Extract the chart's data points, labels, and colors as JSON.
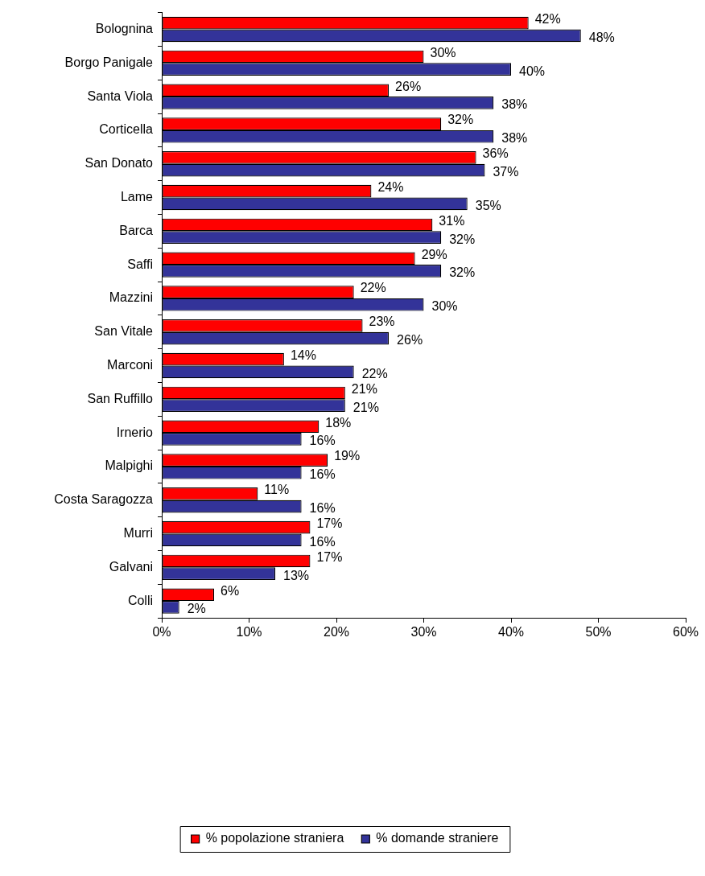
{
  "chart_data": {
    "type": "bar",
    "orientation": "horizontal",
    "grid": false,
    "legend": "bottom",
    "data_labels": true,
    "categories": [
      "Bolognina",
      "Borgo Panigale",
      "Santa Viola",
      "Corticella",
      "San Donato",
      "Lame",
      "Barca",
      "Saffi",
      "Mazzini",
      "San Vitale",
      "Marconi",
      "San Ruffillo",
      "Irnerio",
      "Malpighi",
      "Costa Saragozza",
      "Murri",
      "Galvani",
      "Colli"
    ],
    "xlim": [
      0,
      60
    ],
    "xticks": [
      {
        "value": 0,
        "label": "0%"
      },
      {
        "value": 10,
        "label": "10%"
      },
      {
        "value": 20,
        "label": "20%"
      },
      {
        "value": 30,
        "label": "30%"
      },
      {
        "value": 40,
        "label": "40%"
      },
      {
        "value": 50,
        "label": "50%"
      },
      {
        "value": 60,
        "label": "60%"
      }
    ],
    "series": [
      {
        "name": "% popolazione straniera",
        "color": "#ff0000",
        "values": [
          42,
          30,
          26,
          32,
          36,
          24,
          31,
          29,
          22,
          23,
          14,
          21,
          18,
          19,
          11,
          17,
          17,
          6
        ],
        "value_labels": [
          "42%",
          "30%",
          "26%",
          "32%",
          "36%",
          "24%",
          "31%",
          "29%",
          "22%",
          "23%",
          "14%",
          "21%",
          "18%",
          "19%",
          "11%",
          "17%",
          "17%",
          "6%"
        ]
      },
      {
        "name": "% domande straniere",
        "color": "#333399",
        "values": [
          48,
          40,
          38,
          38,
          37,
          35,
          32,
          32,
          30,
          26,
          22,
          21,
          16,
          16,
          16,
          16,
          13,
          2
        ],
        "value_labels": [
          "48%",
          "40%",
          "38%",
          "38%",
          "37%",
          "35%",
          "32%",
          "32%",
          "30%",
          "26%",
          "22%",
          "21%",
          "16%",
          "16%",
          "16%",
          "16%",
          "13%",
          "2%"
        ]
      }
    ]
  }
}
